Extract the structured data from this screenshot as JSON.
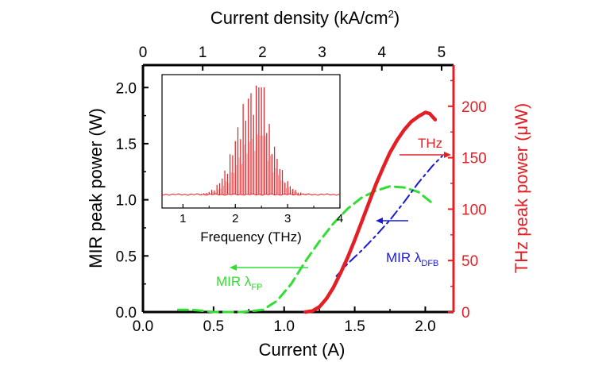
{
  "chart_data": {
    "type": "line",
    "title": "",
    "xlabel": "Current (A)",
    "xlim": [
      0.0,
      2.2
    ],
    "xticks": [
      "0.0",
      "0.5",
      "1.0",
      "1.5",
      "2.0"
    ],
    "top_xlabel": "Current density (kA/cm",
    "top_xlabel_sup": "2",
    "top_xlabel_end": ")",
    "top_xlim": [
      0,
      5.2
    ],
    "top_xticks": [
      "0",
      "1",
      "2",
      "3",
      "4",
      "5"
    ],
    "ylabel_left": "MIR peak power (W)",
    "ylim_left": [
      0.0,
      2.2
    ],
    "yticks_left": [
      "0.0",
      "0.5",
      "1.0",
      "1.5",
      "2.0"
    ],
    "ylabel_right": "THz peak power (μW)",
    "ylim_right": [
      0,
      240
    ],
    "yticks_right": [
      "0",
      "50",
      "100",
      "150",
      "200"
    ],
    "colors": {
      "thz": "#e31e24",
      "mir_fp": "#33dd33",
      "mir_dfb": "#1a1ad6",
      "axis": "#000000"
    },
    "series": [
      {
        "name": "MIR λFP",
        "axis": "left",
        "style": "dashed",
        "x": [
          0.25,
          0.35,
          0.5,
          0.7,
          0.85,
          0.95,
          1.05,
          1.15,
          1.25,
          1.35,
          1.45,
          1.55,
          1.65,
          1.75,
          1.85,
          1.95,
          2.05
        ],
        "y": [
          0.02,
          0.02,
          0.0,
          0.0,
          0.02,
          0.1,
          0.25,
          0.45,
          0.63,
          0.79,
          0.92,
          1.02,
          1.08,
          1.12,
          1.11,
          1.07,
          0.97
        ]
      },
      {
        "name": "MIR λDFB",
        "axis": "left",
        "style": "dashdot",
        "x": [
          1.37,
          1.45,
          1.55,
          1.65,
          1.75,
          1.85,
          1.95,
          2.05,
          2.12
        ],
        "y": [
          0.32,
          0.43,
          0.55,
          0.68,
          0.82,
          0.98,
          1.15,
          1.3,
          1.39
        ]
      },
      {
        "name": "THz",
        "axis": "right",
        "style": "solid",
        "x": [
          1.15,
          1.2,
          1.25,
          1.3,
          1.35,
          1.4,
          1.45,
          1.5,
          1.55,
          1.6,
          1.65,
          1.7,
          1.75,
          1.8,
          1.85,
          1.9,
          1.95,
          2.0,
          2.03,
          2.05,
          2.07
        ],
        "y": [
          0,
          1,
          5,
          13,
          24,
          38,
          53,
          70,
          88,
          106,
          124,
          140,
          155,
          167,
          177,
          185,
          190,
          194,
          193,
          190,
          187
        ]
      }
    ],
    "annotations": [
      {
        "label": "THz",
        "color": "#e31e24"
      },
      {
        "label": "MIR λ",
        "sub": "DFB",
        "color": "#1a1ad6"
      },
      {
        "label": "MIR λ",
        "sub": "FP",
        "color": "#33dd33"
      }
    ],
    "inset": {
      "type": "spectrum",
      "xlabel": "Frequency (THz)",
      "xlim": [
        0.6,
        4.0
      ],
      "xticks": [
        "1",
        "2",
        "3",
        "4"
      ],
      "envelope_center": 2.35,
      "envelope_width": 0.45,
      "peak_center": 2.5,
      "peak_spacing": 0.05,
      "peak_max": 1.0
    }
  }
}
